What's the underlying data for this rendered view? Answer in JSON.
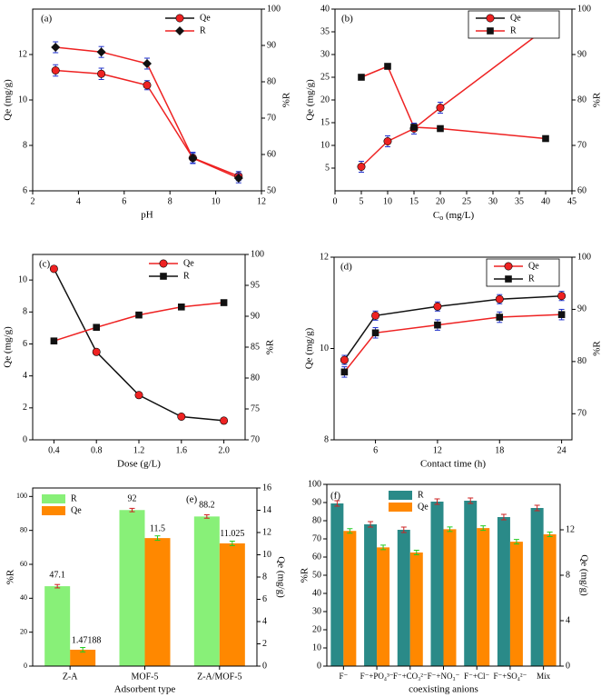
{
  "colors": {
    "qe": "#ee2222",
    "r": "#111111",
    "errorbar": "#2233cc",
    "bar_r": "#88f078",
    "bar_qe": "#ff8800",
    "bar_r_teal": "#2a8a88",
    "bar_err": "#22cc22"
  },
  "chart_data": [
    {
      "id": "a",
      "type": "line",
      "panel_label": "(a)",
      "xlabel": "pH",
      "ylabel_left": "Qe (mg/g)",
      "ylabel_right": "%R",
      "xlim": [
        2,
        12
      ],
      "xticks": [
        2,
        4,
        6,
        8,
        10,
        12
      ],
      "ylim_left": [
        6,
        14
      ],
      "yticks_left": [
        6,
        8,
        10,
        12
      ],
      "ylim_right": [
        50,
        100
      ],
      "yticks_right": [
        50,
        60,
        70,
        80,
        90,
        100
      ],
      "legend": [
        "Qe",
        "R"
      ],
      "x": [
        3,
        5,
        7,
        9,
        11
      ],
      "series": [
        {
          "name": "Qe",
          "axis": "left",
          "marker": "circle",
          "values": [
            11.3,
            11.15,
            10.65,
            7.45,
            6.65
          ],
          "err": [
            0.25,
            0.25,
            0.2,
            0.25,
            0.2
          ]
        },
        {
          "name": "R",
          "axis": "right",
          "marker": "diamond",
          "values": [
            89.5,
            88.2,
            85.0,
            59.0,
            53.5
          ],
          "err": [
            1.5,
            1.5,
            1.5,
            1.3,
            1.3
          ]
        }
      ]
    },
    {
      "id": "b",
      "type": "line",
      "panel_label": "(b)",
      "xlabel": "Co (mg/L)",
      "ylabel_left": "Qe (mg/g)",
      "ylabel_right": "%R",
      "xlim": [
        0,
        45
      ],
      "xticks": [
        0,
        5,
        10,
        15,
        20,
        25,
        30,
        35,
        40,
        45
      ],
      "ylim_left": [
        0,
        40
      ],
      "yticks_left": [
        5,
        10,
        15,
        20,
        25,
        30,
        35,
        40
      ],
      "ylim_right": [
        60,
        100
      ],
      "yticks_right": [
        60,
        70,
        80,
        90,
        100
      ],
      "legend": [
        "Qe",
        "R"
      ],
      "x": [
        5,
        10,
        15,
        20,
        40
      ],
      "series": [
        {
          "name": "Qe",
          "axis": "left",
          "marker": "circle",
          "values": [
            5.3,
            10.9,
            13.7,
            18.3,
            35.7
          ],
          "err": [
            1.2,
            1.2,
            1.2,
            1.2,
            1.2
          ]
        },
        {
          "name": "R",
          "axis": "right",
          "marker": "square",
          "values": [
            85.0,
            87.4,
            74.0,
            73.7,
            71.5
          ],
          "err": [
            0.6,
            0.6,
            0.6,
            0.6,
            0.6
          ]
        }
      ]
    },
    {
      "id": "c",
      "type": "line",
      "panel_label": "(c)",
      "xlabel": "Dose (g/L)",
      "ylabel_left": "Qe (mg/g)",
      "ylabel_right": "%R",
      "xlim": [
        0.2,
        2.2
      ],
      "xticks": [
        0.4,
        0.8,
        1.2,
        1.6,
        2.0
      ],
      "ylim_left": [
        0,
        11.6
      ],
      "yticks_left": [
        0,
        2,
        4,
        6,
        8,
        10
      ],
      "ylim_right": [
        70,
        100
      ],
      "yticks_right": [
        70,
        75,
        80,
        85,
        90,
        95,
        100
      ],
      "legend": [
        "Qe",
        "R"
      ],
      "x": [
        0.4,
        0.8,
        1.2,
        1.6,
        2.0
      ],
      "series": [
        {
          "name": "Qe",
          "axis": "left",
          "marker": "circle",
          "values": [
            10.7,
            5.5,
            2.8,
            1.45,
            1.2
          ],
          "err": [
            0.1,
            0.1,
            0.1,
            0.1,
            0.1
          ]
        },
        {
          "name": "R",
          "axis": "right",
          "marker": "square",
          "values": [
            86.0,
            88.2,
            90.2,
            91.5,
            92.2
          ],
          "err": [
            0.3,
            0.3,
            0.3,
            0.3,
            0.3
          ]
        }
      ]
    },
    {
      "id": "d",
      "type": "line",
      "panel_label": "(d)",
      "xlabel": "Contact time (h)",
      "ylabel_left": "Qe (mg/g)",
      "ylabel_right": "%R",
      "xlim": [
        2,
        25
      ],
      "xticks": [
        6,
        12,
        18,
        24
      ],
      "ylim_left": [
        8,
        12
      ],
      "yticks_left": [
        8,
        10,
        12
      ],
      "ylim_right": [
        65,
        100
      ],
      "yticks_right": [
        70,
        80,
        90,
        100
      ],
      "legend": [
        "Qe",
        "R"
      ],
      "x": [
        3,
        6,
        12,
        18,
        24
      ],
      "series": [
        {
          "name": "Qe",
          "axis": "left",
          "marker": "circle",
          "values": [
            9.75,
            10.72,
            10.92,
            11.08,
            11.15
          ],
          "err": [
            0.1,
            0.1,
            0.1,
            0.1,
            0.1
          ]
        },
        {
          "name": "R",
          "axis": "right",
          "marker": "square",
          "values": [
            78.0,
            85.5,
            87.0,
            88.5,
            89.0
          ],
          "err": [
            1.0,
            1.0,
            1.0,
            1.0,
            1.0
          ]
        }
      ]
    },
    {
      "id": "e",
      "type": "bar",
      "panel_label": "(e)",
      "xlabel": "Adsorbent type",
      "ylabel_left": "%R",
      "ylabel_right": "Qe (mg/g)",
      "categories": [
        "Z-A",
        "MOF-5",
        "Z-A/MOF-5"
      ],
      "ylim_left": [
        0,
        105
      ],
      "yticks_left": [
        0,
        20,
        40,
        60,
        80,
        100
      ],
      "ylim_right": [
        0,
        16
      ],
      "yticks_right": [
        0,
        2,
        4,
        6,
        8,
        10,
        12,
        14,
        16
      ],
      "legend": [
        "R",
        "Qe"
      ],
      "series": [
        {
          "name": "R",
          "axis": "left",
          "values": [
            47.1,
            92,
            88.2
          ],
          "labels": [
            "47.1",
            "92",
            "88.2"
          ],
          "err": [
            1.0,
            1.0,
            1.0
          ]
        },
        {
          "name": "Qe",
          "axis": "right",
          "values": [
            1.47188,
            11.5,
            11.025
          ],
          "labels": [
            "1.47188",
            "11.5",
            "11.025"
          ],
          "err": [
            0.2,
            0.2,
            0.2
          ]
        }
      ]
    },
    {
      "id": "f",
      "type": "bar",
      "panel_label": "(f)",
      "xlabel": "coexisting anions",
      "ylabel_left": "%R",
      "ylabel_right": "Qe (mg/g)",
      "categories": [
        "F⁻",
        "F⁻+PO₄³⁻",
        "F⁻+CO₃²⁻",
        "F⁻+NO₃⁻",
        "F⁻+Cl⁻",
        "F⁻+SO₄²⁻",
        "Mix"
      ],
      "ylim_left": [
        0,
        100
      ],
      "yticks_left": [
        0,
        10,
        20,
        30,
        40,
        50,
        60,
        70,
        80,
        90,
        100
      ],
      "ylim_right": [
        0,
        16
      ],
      "yticks_right": [
        0,
        4,
        8,
        12
      ],
      "legend": [
        "R",
        "Qe"
      ],
      "series": [
        {
          "name": "R",
          "axis": "left",
          "values": [
            89.5,
            78.0,
            75.0,
            90.5,
            91.0,
            82.0,
            87.0
          ],
          "err": [
            1.5,
            1.5,
            1.5,
            1.5,
            1.5,
            1.5,
            1.5
          ]
        },
        {
          "name": "Qe",
          "axis": "right",
          "values": [
            11.9,
            10.45,
            10.0,
            12.05,
            12.15,
            10.95,
            11.6
          ],
          "err": [
            0.2,
            0.2,
            0.2,
            0.2,
            0.2,
            0.2,
            0.2
          ]
        }
      ]
    }
  ]
}
